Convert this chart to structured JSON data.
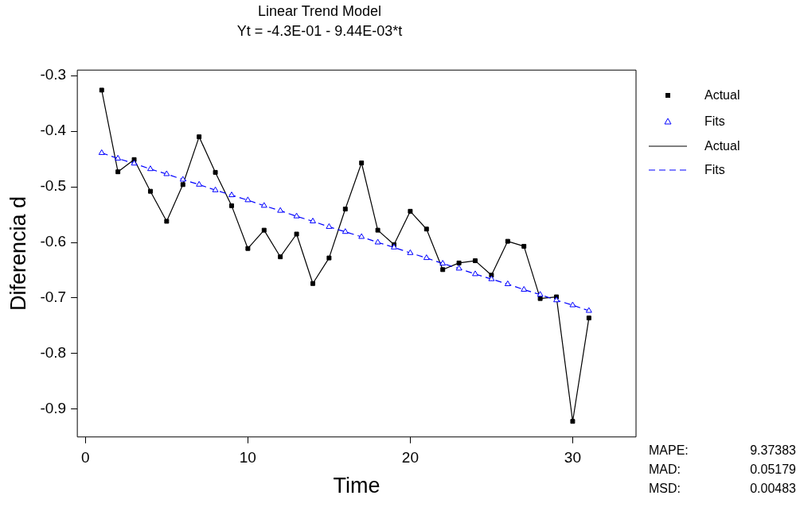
{
  "chart_data": {
    "type": "line",
    "title": "Linear Trend Model",
    "subtitle": "Yt = -4.3E-01 - 9.44E-03*t",
    "xlabel": "Time",
    "ylabel": "Diferencia d",
    "x": [
      1,
      2,
      3,
      4,
      5,
      6,
      7,
      8,
      9,
      10,
      11,
      12,
      13,
      14,
      15,
      16,
      17,
      18,
      19,
      20,
      21,
      22,
      23,
      24,
      25,
      26,
      27,
      28,
      29,
      30,
      31
    ],
    "series": [
      {
        "name": "Actual",
        "color": "#000000",
        "marker": "square",
        "line_style": "solid",
        "values": [
          -0.326,
          -0.473,
          -0.451,
          -0.508,
          -0.562,
          -0.496,
          -0.41,
          -0.474,
          -0.534,
          -0.611,
          -0.578,
          -0.626,
          -0.585,
          -0.674,
          -0.628,
          -0.54,
          -0.457,
          -0.578,
          -0.604,
          -0.544,
          -0.576,
          -0.649,
          -0.637,
          -0.633,
          -0.659,
          -0.598,
          -0.607,
          -0.701,
          -0.698,
          -0.922,
          -0.736
        ]
      },
      {
        "name": "Fits",
        "color": "#0000ff",
        "marker": "triangle",
        "line_style": "dashed",
        "values": [
          -0.439,
          -0.449,
          -0.458,
          -0.468,
          -0.477,
          -0.487,
          -0.496,
          -0.506,
          -0.515,
          -0.524,
          -0.534,
          -0.543,
          -0.553,
          -0.562,
          -0.572,
          -0.581,
          -0.59,
          -0.6,
          -0.609,
          -0.619,
          -0.628,
          -0.638,
          -0.647,
          -0.657,
          -0.666,
          -0.675,
          -0.685,
          -0.694,
          -0.704,
          -0.713,
          -0.723
        ]
      }
    ],
    "xlim": [
      -0.5,
      33.9
    ],
    "xticks": [
      0,
      10,
      20,
      30
    ],
    "ylim": [
      -0.95,
      -0.29
    ],
    "yticks": [
      -0.9,
      -0.8,
      -0.7,
      -0.6,
      -0.5,
      -0.4,
      -0.3
    ],
    "grid": false,
    "legend": "right",
    "annotations": [
      "MAPE:",
      "9.37383",
      "MAD:",
      "0.05179",
      "MSD:",
      "0.00483"
    ]
  }
}
